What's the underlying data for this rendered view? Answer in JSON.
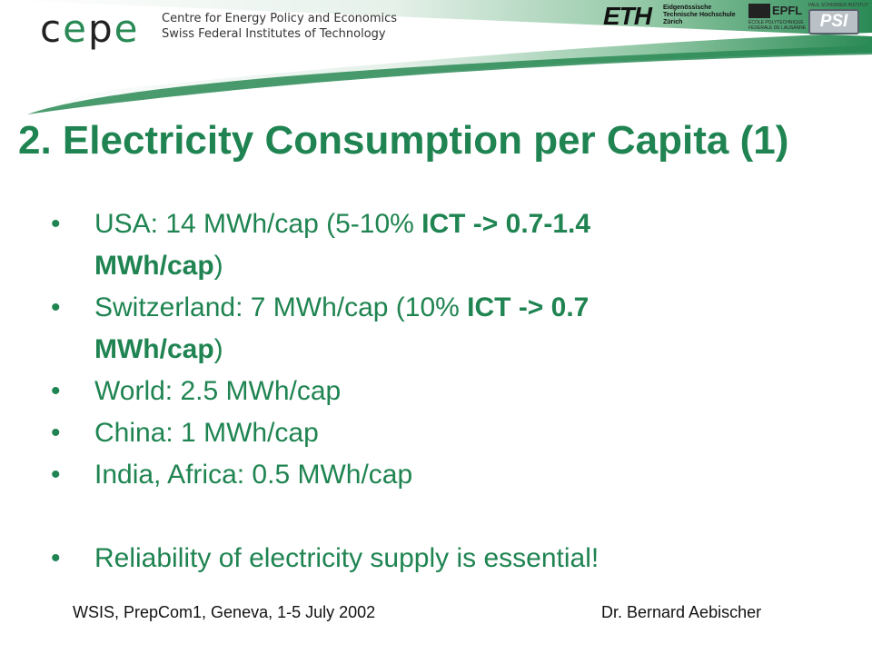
{
  "header": {
    "cepe_logo": {
      "c1": "c",
      "e1": "e",
      "p": "p",
      "e2": "e"
    },
    "cepe_line1": "Centre for Energy Policy and Economics",
    "cepe_line2": "Swiss Federal Institutes of Technology",
    "eth_logo": "ETH",
    "eth_line1": "Eidgenössische",
    "eth_line2": "Technische Hochschule",
    "eth_line3": "Zürich",
    "epfl_logo": "EPFL",
    "epfl_line1": "ÉCOLE POLYTECHNIQUE",
    "epfl_line2": "FÉDÉRALE DE LAUSANNE",
    "psi_top": "PAUL SCHERRER INSTITUT",
    "psi_logo": "PSI",
    "band_color": "#2a8a55"
  },
  "title": "2. Electricity Consumption per Capita (1)",
  "bullets": [
    {
      "pre": "USA: 14 MWh/cap (5-10% ",
      "b1": "ICT -> 0.7-1.4",
      "line2_b": "MWh/cap",
      "line2_post": ")"
    },
    {
      "pre": "Switzerland: 7 MWh/cap (10% ",
      "b1": "ICT -> 0.7",
      "line2_b": "MWh/cap",
      "line2_post": ")"
    },
    {
      "text": "World: 2.5 MWh/cap"
    },
    {
      "text": "China: 1 MWh/cap"
    },
    {
      "text": "India, Africa: 0.5 MWh/cap"
    },
    {
      "text": "Reliability of electricity supply is essential!"
    }
  ],
  "bullet_glyph": "•",
  "footer": {
    "left": "WSIS, PrepCom1, Geneva, 1-5 July 2002",
    "right": "Dr. Bernard Aebischer"
  },
  "text_color": "#1f8451"
}
